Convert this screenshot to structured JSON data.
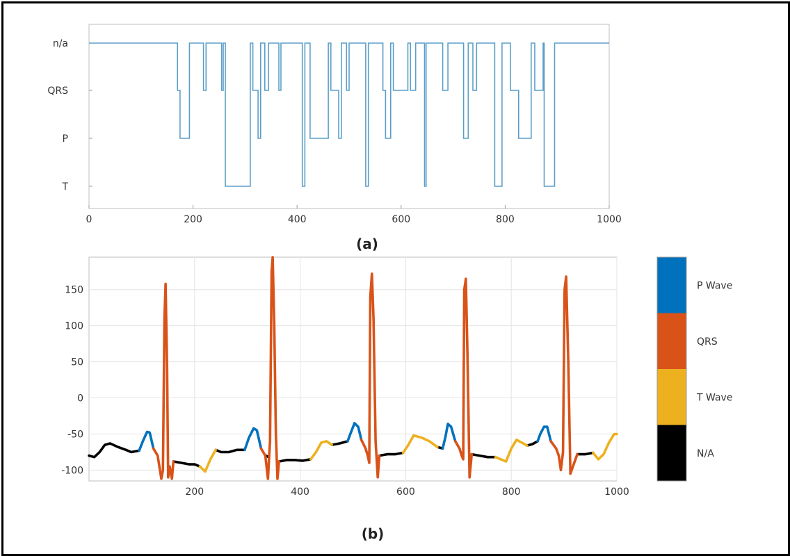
{
  "chart_data": [
    {
      "type": "line",
      "caption": "(a)",
      "xlim": [
        0,
        1000
      ],
      "x_ticks": [
        "0",
        "200",
        "400",
        "600",
        "800",
        "1000"
      ],
      "y_categories": [
        "T",
        "P",
        "QRS",
        "n/a"
      ],
      "color": "#5b9fc8",
      "series": [
        {
          "x": [
            0,
            170,
            170,
            175,
            175,
            193,
            193,
            220,
            220,
            225,
            225,
            255,
            255,
            258,
            258,
            262,
            262,
            310,
            310,
            315,
            315,
            325,
            325,
            330,
            330,
            338,
            338,
            345,
            345,
            365,
            365,
            369,
            369,
            410,
            410,
            415,
            415,
            425,
            425,
            460,
            460,
            465,
            465,
            480,
            480,
            485,
            485,
            495,
            495,
            500,
            500,
            532,
            532,
            537,
            537,
            565,
            565,
            570,
            570,
            580,
            580,
            585,
            585,
            613,
            613,
            618,
            618,
            628,
            628,
            645,
            645,
            648,
            648,
            680,
            680,
            690,
            690,
            720,
            720,
            729,
            729,
            738,
            738,
            745,
            745,
            780,
            780,
            794,
            794,
            810,
            810,
            826,
            826,
            850,
            850,
            857,
            857,
            873,
            873,
            875,
            875,
            895,
            895,
            900,
            900,
            1000
          ],
          "y": [
            3,
            3,
            2,
            2,
            1,
            1,
            3,
            3,
            2,
            2,
            3,
            3,
            2,
            2,
            3,
            3,
            0,
            0,
            3,
            3,
            2,
            2,
            1,
            1,
            3,
            3,
            2,
            2,
            3,
            3,
            2,
            2,
            3,
            3,
            0,
            0,
            3,
            3,
            1,
            1,
            3,
            3,
            2,
            2,
            1,
            1,
            3,
            3,
            2,
            2,
            3,
            3,
            0,
            0,
            3,
            3,
            2,
            2,
            1,
            1,
            3,
            3,
            2,
            2,
            3,
            3,
            2,
            2,
            3,
            3,
            0,
            0,
            3,
            3,
            2,
            2,
            3,
            3,
            1,
            1,
            3,
            3,
            2,
            2,
            3,
            3,
            0,
            0,
            3,
            3,
            2,
            2,
            1,
            1,
            3,
            3,
            2,
            2,
            3,
            3,
            0,
            0,
            3,
            3,
            3,
            3
          ]
        }
      ]
    },
    {
      "type": "line",
      "caption": "(b)",
      "xlim": [
        0,
        1000
      ],
      "ylim": [
        -115,
        195
      ],
      "x_ticks": [
        "200",
        "400",
        "600",
        "800",
        "1000"
      ],
      "y_ticks": [
        "150",
        "100",
        "50",
        "0",
        "-50",
        "-100"
      ],
      "y_tick_values": [
        150,
        100,
        50,
        0,
        -50,
        -100
      ],
      "grid": true,
      "legend_position": "right",
      "legend": [
        {
          "label": "P Wave",
          "color": "#0072bd"
        },
        {
          "label": "QRS",
          "color": "#d95319"
        },
        {
          "label": "T Wave",
          "color": "#edb120"
        },
        {
          "label": "N/A",
          "color": "#000000"
        }
      ],
      "series": [
        {
          "name": "N/A",
          "color": "#000000",
          "segments": [
            {
              "x": [
                0,
                10,
                20,
                30,
                40,
                55,
                70,
                80,
                95
              ],
              "y": [
                -80,
                -82,
                -75,
                -65,
                -63,
                -68,
                -72,
                -75,
                -73
              ]
            },
            {
              "x": [
                160,
                175,
                190,
                200,
                210
              ],
              "y": [
                -88,
                -90,
                -92,
                -92,
                -95
              ]
            },
            {
              "x": [
                240,
                250,
                265,
                280,
                295
              ],
              "y": [
                -72,
                -75,
                -75,
                -72,
                -72
              ]
            },
            {
              "x": [
                335,
                340
              ],
              "y": [
                -80,
                -82
              ]
            },
            {
              "x": [
                360,
                375,
                390,
                405,
                420
              ],
              "y": [
                -88,
                -86,
                -86,
                -87,
                -85
              ]
            },
            {
              "x": [
                460,
                475,
                490
              ],
              "y": [
                -65,
                -63,
                -60
              ]
            },
            {
              "x": [
                550,
                565,
                580,
                595
              ],
              "y": [
                -80,
                -78,
                -78,
                -76
              ]
            },
            {
              "x": [
                660,
                670
              ],
              "y": [
                -68,
                -70
              ]
            },
            {
              "x": [
                725,
                740,
                755,
                770
              ],
              "y": [
                -78,
                -80,
                -82,
                -82
              ]
            },
            {
              "x": [
                830,
                840,
                850
              ],
              "y": [
                -66,
                -64,
                -60
              ]
            },
            {
              "x": [
                925,
                940,
                955
              ],
              "y": [
                -78,
                -78,
                -76
              ]
            }
          ]
        },
        {
          "name": "P Wave",
          "color": "#0072bd",
          "segments": [
            {
              "x": [
                95,
                102,
                110,
                115,
                122
              ],
              "y": [
                -73,
                -60,
                -47,
                -48,
                -70
              ]
            },
            {
              "x": [
                295,
                303,
                312,
                318,
                326
              ],
              "y": [
                -72,
                -55,
                -42,
                -45,
                -70
              ]
            },
            {
              "x": [
                490,
                495,
                503,
                510,
                516
              ],
              "y": [
                -60,
                -50,
                -35,
                -40,
                -58
              ]
            },
            {
              "x": [
                670,
                675,
                680,
                686,
                694
              ],
              "y": [
                -70,
                -55,
                -36,
                -40,
                -60
              ]
            },
            {
              "x": [
                850,
                855,
                862,
                868,
                875
              ],
              "y": [
                -60,
                -50,
                -40,
                -40,
                -60
              ]
            }
          ]
        },
        {
          "name": "QRS",
          "color": "#d95319",
          "segments": [
            {
              "x": [
                122,
                130,
                137,
                140,
                143,
                145,
                148,
                150,
                153,
                157,
                160
              ],
              "y": [
                -70,
                -80,
                -112,
                -100,
                110,
                158,
                40,
                -110,
                -95,
                -112,
                -88
              ]
            },
            {
              "x": [
                326,
                334,
                339,
                343,
                346,
                348,
                351,
                354,
                357,
                360
              ],
              "y": [
                -70,
                -80,
                -112,
                -60,
                175,
                195,
                100,
                -50,
                -112,
                -88
              ]
            },
            {
              "x": [
                516,
                524,
                528,
                531,
                533,
                536,
                539,
                543,
                547,
                550
              ],
              "y": [
                -58,
                -70,
                -80,
                -90,
                140,
                172,
                110,
                -60,
                -110,
                -80
              ]
            },
            {
              "x": [
                694,
                702,
                706,
                709,
                711,
                714,
                717,
                721,
                725
              ],
              "y": [
                -60,
                -70,
                -80,
                -85,
                150,
                165,
                60,
                -110,
                -78
              ]
            },
            {
              "x": [
                875,
                885,
                890,
                894,
                898,
                901,
                904,
                908,
                912,
                925
              ],
              "y": [
                -60,
                -70,
                -80,
                -100,
                -75,
                150,
                168,
                50,
                -105,
                -78
              ]
            }
          ]
        },
        {
          "name": "T Wave",
          "color": "#edb120",
          "segments": [
            {
              "x": [
                210,
                220,
                230,
                240
              ],
              "y": [
                -95,
                -102,
                -85,
                -72
              ]
            },
            {
              "x": [
                420,
                430,
                440,
                450,
                460
              ],
              "y": [
                -85,
                -75,
                -62,
                -60,
                -65
              ]
            },
            {
              "x": [
                595,
                605,
                615,
                630,
                645,
                660
              ],
              "y": [
                -76,
                -65,
                -52,
                -55,
                -60,
                -68
              ]
            },
            {
              "x": [
                770,
                780,
                790,
                800,
                810,
                820,
                830
              ],
              "y": [
                -82,
                -85,
                -88,
                -70,
                -58,
                -62,
                -66
              ]
            },
            {
              "x": [
                955,
                965,
                975,
                985,
                995,
                1000
              ],
              "y": [
                -76,
                -85,
                -78,
                -62,
                -50,
                -50
              ]
            }
          ]
        }
      ]
    }
  ]
}
